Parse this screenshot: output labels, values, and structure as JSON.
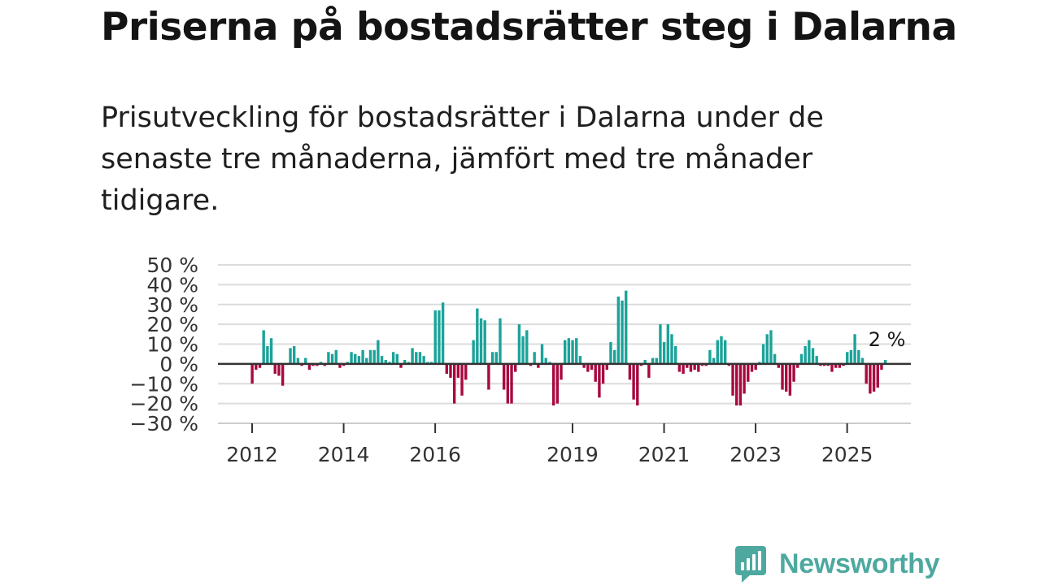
{
  "title": "Priserna på bostadsrätter steg i Dalarna",
  "subtitle": "Prisutveckling för bostadsrätter i Dalarna under de senaste tre månaderna, jämfört med tre månader tidigare.",
  "brand": {
    "name": "Newsworthy",
    "color": "#4da9a0"
  },
  "colors": {
    "positive": "#1ba39a",
    "negative": "#a8093f",
    "grid": "#dcdcdc",
    "axis": "#333333"
  },
  "chart_data": {
    "type": "bar",
    "title": "Priserna på bostadsrätter steg i Dalarna",
    "xlabel": "",
    "ylabel": "",
    "ylim": [
      -30,
      50
    ],
    "yticks": [
      50,
      40,
      30,
      20,
      10,
      0,
      -10,
      -20,
      -30
    ],
    "ytick_labels": [
      "50 %",
      "40 %",
      "30 %",
      "20 %",
      "10 %",
      "0 %",
      "−10 %",
      "−20 %",
      "−30 %"
    ],
    "x_start": "2012-01",
    "xticks": [
      {
        "label": "2012",
        "index": 0
      },
      {
        "label": "2014",
        "index": 24
      },
      {
        "label": "2016",
        "index": 48
      },
      {
        "label": "2019",
        "index": 84
      },
      {
        "label": "2021",
        "index": 108
      },
      {
        "label": "2023",
        "index": 132
      },
      {
        "label": "2025",
        "index": 156
      }
    ],
    "last_value_label": "2 %",
    "values": [
      -10,
      -3,
      -2,
      17,
      9,
      13,
      -5,
      -6,
      -11,
      0,
      8,
      9,
      3,
      -1,
      3,
      -3,
      -1,
      -1,
      1,
      -1,
      6,
      5,
      7,
      -2,
      -1,
      1,
      6,
      5,
      4,
      7,
      3,
      7,
      7,
      12,
      4,
      2,
      1,
      6,
      5,
      -2,
      2,
      1,
      8,
      6,
      6,
      4,
      1,
      1,
      27,
      27,
      31,
      -5,
      -7,
      -20,
      -7,
      -16,
      -8,
      0,
      12,
      28,
      23,
      22,
      -13,
      6,
      6,
      23,
      -13,
      -20,
      -20,
      -4,
      20,
      14,
      17,
      -1,
      6,
      -2,
      10,
      3,
      1,
      -21,
      -20,
      -8,
      12,
      13,
      12,
      13,
      4,
      -2,
      -4,
      -3,
      -9,
      -17,
      -10,
      -3,
      11,
      7,
      34,
      32,
      37,
      -8,
      -18,
      -21,
      -1,
      2,
      -7,
      3,
      3,
      20,
      11,
      20,
      15,
      9,
      -4,
      -5,
      -2,
      -4,
      -3,
      -4,
      -1,
      -1,
      7,
      3,
      12,
      14,
      12,
      -1,
      -16,
      -21,
      -21,
      -15,
      -9,
      -4,
      -3,
      1,
      10,
      15,
      17,
      5,
      -2,
      -13,
      -14,
      -16,
      -9,
      -2,
      5,
      9,
      12,
      8,
      4,
      -1,
      -1,
      -1,
      -4,
      -2,
      -2,
      -1,
      6,
      7,
      15,
      7,
      3,
      -10,
      -15,
      -14,
      -12,
      -3,
      2
    ]
  }
}
